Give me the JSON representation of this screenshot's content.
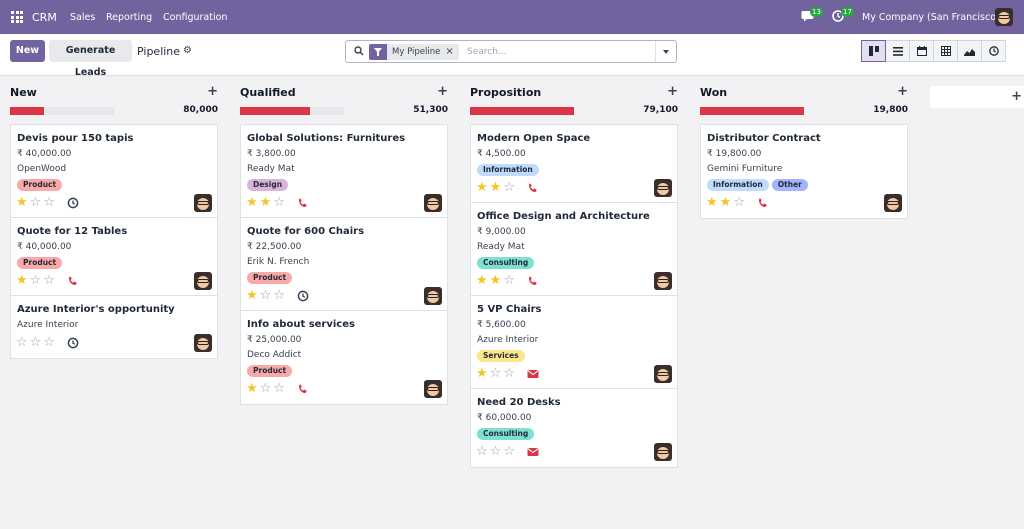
{
  "app": {
    "name": "CRM",
    "menu": [
      "Sales",
      "Reporting",
      "Configuration"
    ]
  },
  "systray": {
    "messages_count": "13",
    "activities_count": "17",
    "company": "My Company (San Francisco)"
  },
  "control": {
    "new_label": "New",
    "generate_label": "Generate Leads",
    "breadcrumb": "Pipeline",
    "facet": "My Pipeline",
    "search_placeholder": "Search...",
    "views": [
      "kanban-icon",
      "list-icon",
      "calendar-icon",
      "pivot-icon",
      "graph-icon",
      "activity-icon"
    ],
    "active_view": "kanban-icon"
  },
  "colors": {
    "brand": "#71639e",
    "progress": "#dc3545",
    "star": "#f3c623",
    "phone": "#dc3545",
    "overdue": "#dc3545"
  },
  "tag_colors": {
    "Product": "#f9a8a8",
    "Design": "#d8b4d9",
    "Information": "#bfdbfe",
    "Consulting": "#7ee0d3",
    "Services": "#fde68a",
    "Other": "#a5b4fc"
  },
  "columns": [
    {
      "title": "New",
      "total": "80,000",
      "progress": 0.33,
      "cards": [
        {
          "title": "Devis pour 150 tapis",
          "amount": "₹ 40,000.00",
          "customer": "OpenWood",
          "tags": [
            "Product"
          ],
          "stars": 1,
          "activity": "clock-icon"
        },
        {
          "title": "Quote for 12 Tables",
          "amount": "₹ 40,000.00",
          "customer": "",
          "tags": [
            "Product"
          ],
          "stars": 1,
          "activity": "phone-icon"
        },
        {
          "title": "Azure Interior's opportunity",
          "amount": "",
          "customer": "Azure Interior",
          "tags": [],
          "stars": 0,
          "activity": "clock-icon"
        }
      ]
    },
    {
      "title": "Qualified",
      "total": "51,300",
      "progress": 0.67,
      "cards": [
        {
          "title": "Global Solutions: Furnitures",
          "amount": "₹ 3,800.00",
          "customer": "Ready Mat",
          "tags": [
            "Design"
          ],
          "stars": 2,
          "activity": "phone-icon"
        },
        {
          "title": "Quote for 600 Chairs",
          "amount": "₹ 22,500.00",
          "customer": "Erik N. French",
          "tags": [
            "Product"
          ],
          "stars": 1,
          "activity": "clock-icon"
        },
        {
          "title": "Info about services",
          "amount": "₹ 25,000.00",
          "customer": "Deco Addict",
          "tags": [
            "Product"
          ],
          "stars": 1,
          "activity": "phone-icon"
        }
      ]
    },
    {
      "title": "Proposition",
      "total": "79,100",
      "progress": 1.0,
      "cards": [
        {
          "title": "Modern Open Space",
          "amount": "₹ 4,500.00",
          "customer": "",
          "tags": [
            "Information"
          ],
          "stars": 2,
          "activity": "phone-icon"
        },
        {
          "title": "Office Design and Architecture",
          "amount": "₹ 9,000.00",
          "customer": "Ready Mat",
          "tags": [
            "Consulting"
          ],
          "stars": 2,
          "activity": "phone-icon"
        },
        {
          "title": "5 VP Chairs",
          "amount": "₹ 5,600.00",
          "customer": "Azure Interior",
          "tags": [
            "Services"
          ],
          "stars": 1,
          "activity": "envelope-icon"
        },
        {
          "title": "Need 20 Desks",
          "amount": "₹ 60,000.00",
          "customer": "",
          "tags": [
            "Consulting"
          ],
          "stars": 0,
          "activity": "envelope-icon"
        }
      ]
    },
    {
      "title": "Won",
      "total": "19,800",
      "progress": 1.0,
      "cards": [
        {
          "title": "Distributor Contract",
          "amount": "₹ 19,800.00",
          "customer": "Gemini Furniture",
          "tags": [
            "Information",
            "Other"
          ],
          "stars": 2,
          "activity": "phone-icon"
        }
      ]
    }
  ]
}
